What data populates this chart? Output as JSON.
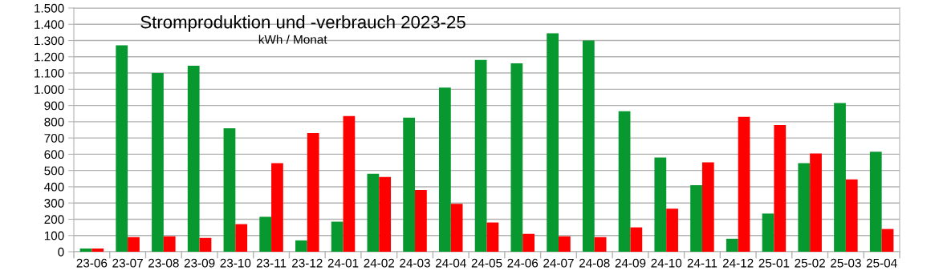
{
  "chart_data": {
    "type": "bar",
    "title": "Stromproduktion und -verbrauch 2023-25",
    "subtitle": "kWh / Monat",
    "categories": [
      "23-06",
      "23-07",
      "23-08",
      "23-09",
      "23-10",
      "23-11",
      "23-12",
      "24-01",
      "24-02",
      "24-03",
      "24-04",
      "24-05",
      "24-06",
      "24-07",
      "24-08",
      "24-09",
      "24-10",
      "24-11",
      "24-12",
      "25-01",
      "25-02",
      "25-03",
      "25-04"
    ],
    "series": [
      {
        "color": "#079830",
        "values": [
          20,
          1270,
          1100,
          1145,
          760,
          215,
          70,
          185,
          480,
          825,
          1010,
          1180,
          1160,
          1345,
          1300,
          865,
          580,
          410,
          80,
          235,
          545,
          915,
          615
        ]
      },
      {
        "color": "#ff0000",
        "values": [
          20,
          90,
          95,
          85,
          170,
          545,
          730,
          835,
          460,
          380,
          295,
          180,
          110,
          95,
          90,
          150,
          265,
          550,
          830,
          780,
          605,
          445,
          140
        ]
      }
    ],
    "ylim": [
      0,
      1500
    ],
    "yticks": [
      0,
      100,
      200,
      300,
      400,
      500,
      600,
      700,
      800,
      900,
      {
        "value": 1000,
        "label": "1.000"
      },
      {
        "value": 1100,
        "label": "1.100"
      },
      {
        "value": 1200,
        "label": "1.200"
      },
      {
        "value": 1300,
        "label": "1.300"
      },
      {
        "value": 1400,
        "label": "1.400"
      },
      {
        "value": 1500,
        "label": "1.500"
      }
    ],
    "grid": "y"
  }
}
